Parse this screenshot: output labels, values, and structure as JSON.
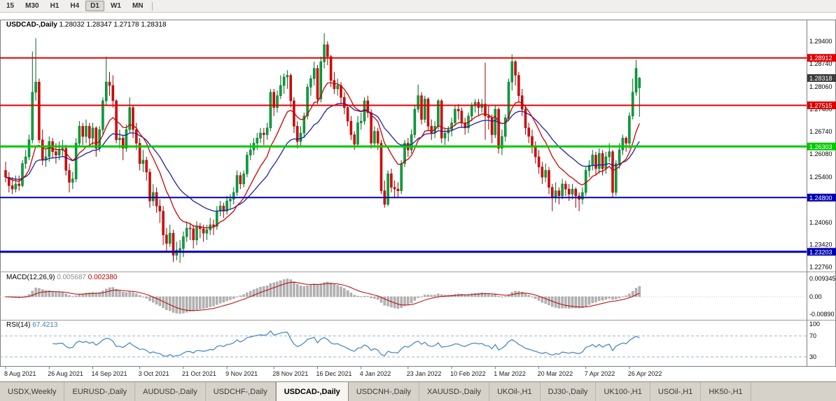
{
  "toolbar": {
    "periods": [
      {
        "label": "15",
        "active": false
      },
      {
        "label": "M30",
        "active": false
      },
      {
        "label": "H1",
        "active": false
      },
      {
        "label": "H4",
        "active": false
      },
      {
        "label": "D1",
        "active": true
      },
      {
        "label": "W1",
        "active": false
      },
      {
        "label": "MN",
        "active": false
      }
    ]
  },
  "chart": {
    "symbol_title": "USDCAD-,Daily",
    "ohlc_text": "1.28032 1.28347 1.27178 1.28318"
  },
  "macd": {
    "label": "MACD(12,26,9)",
    "main_value": "0.005687",
    "signal_value": "0.002380",
    "axis": [
      "0.009345",
      "0.00",
      "-0.00890"
    ]
  },
  "rsi": {
    "label": "RSI(14)",
    "value": "67.4213",
    "axis": [
      "100",
      "70",
      "30"
    ],
    "level_lines": [
      70,
      30
    ]
  },
  "tabs": [
    {
      "label": "USDX,Weekly",
      "active": false
    },
    {
      "label": "EURUSD-,Daily",
      "active": false
    },
    {
      "label": "AUDUSD-,Daily",
      "active": false
    },
    {
      "label": "USDCHF-,Daily",
      "active": false
    },
    {
      "label": "USDCAD-,Daily",
      "active": true
    },
    {
      "label": "USDCNH-,Daily",
      "active": false
    },
    {
      "label": "XAUUSD-,Daily",
      "active": false
    },
    {
      "label": "UKOil-,H1",
      "active": false
    },
    {
      "label": "DJ30-,Daily",
      "active": false
    },
    {
      "label": "UK100-,H1",
      "active": false
    },
    {
      "label": "USOil-,H1",
      "active": false
    },
    {
      "label": "HK50-,H1",
      "active": false
    }
  ],
  "chart_data": {
    "type": "candlestick",
    "symbol": "USDCAD-",
    "timeframe": "Daily",
    "last_bar": {
      "open": 1.28032,
      "high": 1.28347,
      "low": 1.27178,
      "close": 1.28318
    },
    "current_price": {
      "price": 1.28318,
      "label": "1.28318",
      "color": "#3c3c3c"
    },
    "levels": [
      {
        "price": 1.28912,
        "label": "1.28912",
        "color": "#e00000",
        "thickness": 2
      },
      {
        "price": 1.27515,
        "label": "1.27515",
        "color": "#e00000",
        "thickness": 2
      },
      {
        "price": 1.26303,
        "label": "1.26303",
        "color": "#00c800",
        "thickness": 3
      },
      {
        "price": 1.248,
        "label": "1.24800",
        "color": "#0000b0",
        "thickness": 2
      },
      {
        "price": 1.23203,
        "label": "1.23203",
        "color": "#0000b0",
        "thickness": 3
      }
    ],
    "price_axis_labels": [
      "1.29400",
      "1.28740",
      "1.28060",
      "1.27400",
      "1.26740",
      "1.26080",
      "1.25400",
      "1.24740",
      "1.24060",
      "1.23420",
      "1.22760"
    ],
    "date_labels": [
      {
        "text": "8 Aug 2021",
        "i": 0
      },
      {
        "text": "26 Aug 2021",
        "i": 13
      },
      {
        "text": "14 Sep 2021",
        "i": 26
      },
      {
        "text": "3 Oct 2021",
        "i": 40
      },
      {
        "text": "21 Oct 2021",
        "i": 53
      },
      {
        "text": "9 Nov 2021",
        "i": 66
      },
      {
        "text": "28 Nov 2021",
        "i": 80
      },
      {
        "text": "16 Dec 2021",
        "i": 93
      },
      {
        "text": "4 Jan 2022",
        "i": 106
      },
      {
        "text": "23 Jan 2022",
        "i": 120
      },
      {
        "text": "10 Feb 2022",
        "i": 133
      },
      {
        "text": "1 Mar 2022",
        "i": 146
      },
      {
        "text": "20 Mar 2022",
        "i": 159
      },
      {
        "text": "7 Apr 2022",
        "i": 173
      },
      {
        "text": "26 Apr 2022",
        "i": 186
      }
    ],
    "overlays": {
      "ema_fast_period": 12,
      "ema_slow_period": 26,
      "fast_color": "#d00000",
      "slow_color": "#2020a8"
    },
    "indicator_params": {
      "macd": [
        12,
        26,
        9
      ],
      "rsi": 14
    },
    "colors": {
      "bull": "#00a33a",
      "bull_edge": "#006622",
      "bear": "#e00000",
      "bear_edge": "#990000",
      "macd_hist": "#b4b4b4",
      "macd_hist_edge": "#8c8c8c",
      "macd_signal": "#c00000",
      "rsi_line": "#4080c0",
      "rsi_levels": "#8fb4d8"
    },
    "ohlc": [
      [
        1.256,
        1.2585,
        1.2525,
        1.254
      ],
      [
        1.254,
        1.2555,
        1.2495,
        1.2515
      ],
      [
        1.2515,
        1.254,
        1.249,
        1.2505
      ],
      [
        1.2505,
        1.2545,
        1.2495,
        1.252
      ],
      [
        1.252,
        1.2545,
        1.25,
        1.2515
      ],
      [
        1.2515,
        1.259,
        1.251,
        1.258
      ],
      [
        1.258,
        1.262,
        1.2565,
        1.26
      ],
      [
        1.26,
        1.2665,
        1.259,
        1.265
      ],
      [
        1.265,
        1.291,
        1.264,
        1.279
      ],
      [
        1.279,
        1.2949,
        1.2765,
        1.282
      ],
      [
        1.282,
        1.283,
        1.264,
        1.265
      ],
      [
        1.265,
        1.268,
        1.2575,
        1.259
      ],
      [
        1.259,
        1.2625,
        1.257,
        1.26
      ],
      [
        1.26,
        1.266,
        1.2585,
        1.2645
      ],
      [
        1.2645,
        1.2655,
        1.2595,
        1.2615
      ],
      [
        1.2615,
        1.264,
        1.258,
        1.2605
      ],
      [
        1.2605,
        1.2645,
        1.259,
        1.262
      ],
      [
        1.262,
        1.265,
        1.26,
        1.2625
      ],
      [
        1.2625,
        1.2635,
        1.2545,
        1.256
      ],
      [
        1.256,
        1.258,
        1.2495,
        1.2525
      ],
      [
        1.2525,
        1.2555,
        1.2505,
        1.2535
      ],
      [
        1.2535,
        1.2655,
        1.2525,
        1.264
      ],
      [
        1.264,
        1.2705,
        1.263,
        1.269
      ],
      [
        1.269,
        1.27,
        1.2635,
        1.266
      ],
      [
        1.266,
        1.271,
        1.264,
        1.269
      ],
      [
        1.269,
        1.27,
        1.263,
        1.2655
      ],
      [
        1.2655,
        1.27,
        1.2635,
        1.2685
      ],
      [
        1.2685,
        1.269,
        1.26,
        1.2625
      ],
      [
        1.2625,
        1.269,
        1.2615,
        1.268
      ],
      [
        1.268,
        1.2775,
        1.2665,
        1.2765
      ],
      [
        1.2765,
        1.2895,
        1.275,
        1.282
      ],
      [
        1.282,
        1.285,
        1.278,
        1.281
      ],
      [
        1.281,
        1.284,
        1.2745,
        1.2765
      ],
      [
        1.2765,
        1.277,
        1.264,
        1.265
      ],
      [
        1.265,
        1.268,
        1.2625,
        1.2655
      ],
      [
        1.2655,
        1.2665,
        1.259,
        1.2625
      ],
      [
        1.2625,
        1.2695,
        1.2615,
        1.268
      ],
      [
        1.268,
        1.2775,
        1.267,
        1.2745
      ],
      [
        1.2745,
        1.275,
        1.2655,
        1.268
      ],
      [
        1.268,
        1.27,
        1.262,
        1.264
      ],
      [
        1.264,
        1.2655,
        1.256,
        1.258
      ],
      [
        1.258,
        1.262,
        1.2555,
        1.259
      ],
      [
        1.259,
        1.26,
        1.253,
        1.2555
      ],
      [
        1.2555,
        1.2565,
        1.245,
        1.247
      ],
      [
        1.247,
        1.252,
        1.2455,
        1.2495
      ],
      [
        1.2495,
        1.251,
        1.2435,
        1.2455
      ],
      [
        1.2455,
        1.2475,
        1.2405,
        1.244
      ],
      [
        1.244,
        1.2455,
        1.234,
        1.237
      ],
      [
        1.237,
        1.239,
        1.232,
        1.2345
      ],
      [
        1.2345,
        1.24,
        1.2335,
        1.2375
      ],
      [
        1.2375,
        1.2385,
        1.229,
        1.231
      ],
      [
        1.231,
        1.235,
        1.2295,
        1.2325
      ],
      [
        1.2325,
        1.2355,
        1.2288,
        1.233
      ],
      [
        1.233,
        1.238,
        1.2305,
        1.2365
      ],
      [
        1.2365,
        1.241,
        1.235,
        1.239
      ],
      [
        1.239,
        1.2405,
        1.2355,
        1.2388
      ],
      [
        1.2388,
        1.24,
        1.233,
        1.2355
      ],
      [
        1.2355,
        1.241,
        1.234,
        1.2395
      ],
      [
        1.2395,
        1.2405,
        1.236,
        1.2388
      ],
      [
        1.2388,
        1.24,
        1.235,
        1.2375
      ],
      [
        1.2375,
        1.24,
        1.2355,
        1.2385
      ],
      [
        1.2385,
        1.242,
        1.237,
        1.24
      ],
      [
        1.24,
        1.2415,
        1.237,
        1.2395
      ],
      [
        1.2395,
        1.2455,
        1.2385,
        1.244
      ],
      [
        1.244,
        1.247,
        1.2425,
        1.2455
      ],
      [
        1.2455,
        1.2465,
        1.242,
        1.244
      ],
      [
        1.244,
        1.2485,
        1.243,
        1.247
      ],
      [
        1.247,
        1.249,
        1.2445,
        1.2475
      ],
      [
        1.2475,
        1.251,
        1.246,
        1.2495
      ],
      [
        1.2495,
        1.256,
        1.2485,
        1.2545
      ],
      [
        1.2545,
        1.2555,
        1.2505,
        1.252
      ],
      [
        1.252,
        1.256,
        1.251,
        1.255
      ],
      [
        1.255,
        1.2615,
        1.254,
        1.2605
      ],
      [
        1.2605,
        1.264,
        1.259,
        1.262
      ],
      [
        1.262,
        1.2655,
        1.2605,
        1.264
      ],
      [
        1.264,
        1.267,
        1.262,
        1.2655
      ],
      [
        1.2655,
        1.2685,
        1.264,
        1.267
      ],
      [
        1.267,
        1.2685,
        1.2635,
        1.2665
      ],
      [
        1.2665,
        1.27,
        1.265,
        1.2685
      ],
      [
        1.2685,
        1.28,
        1.2675,
        1.279
      ],
      [
        1.279,
        1.28,
        1.272,
        1.2745
      ],
      [
        1.2745,
        1.2795,
        1.273,
        1.278
      ],
      [
        1.278,
        1.284,
        1.277,
        1.281
      ],
      [
        1.281,
        1.2845,
        1.2785,
        1.2835
      ],
      [
        1.2835,
        1.2855,
        1.28,
        1.284
      ],
      [
        1.284,
        1.2845,
        1.2745,
        1.2765
      ],
      [
        1.2765,
        1.2775,
        1.267,
        1.269
      ],
      [
        1.269,
        1.2705,
        1.2625,
        1.2645
      ],
      [
        1.2645,
        1.269,
        1.263,
        1.267
      ],
      [
        1.267,
        1.273,
        1.2655,
        1.272
      ],
      [
        1.272,
        1.2815,
        1.271,
        1.2805
      ],
      [
        1.2805,
        1.284,
        1.278,
        1.283
      ],
      [
        1.283,
        1.288,
        1.281,
        1.286
      ],
      [
        1.286,
        1.287,
        1.2755,
        1.277
      ],
      [
        1.277,
        1.2895,
        1.276,
        1.288
      ],
      [
        1.288,
        1.2964,
        1.286,
        1.293
      ],
      [
        1.293,
        1.294,
        1.287,
        1.2895
      ],
      [
        1.2895,
        1.29,
        1.2805,
        1.2825
      ],
      [
        1.2825,
        1.285,
        1.2785,
        1.28
      ],
      [
        1.28,
        1.283,
        1.278,
        1.281
      ],
      [
        1.281,
        1.282,
        1.2755,
        1.2775
      ],
      [
        1.2775,
        1.279,
        1.2725,
        1.2745
      ],
      [
        1.2745,
        1.2755,
        1.269,
        1.2705
      ],
      [
        1.2705,
        1.272,
        1.265,
        1.2665
      ],
      [
        1.2665,
        1.2675,
        1.262,
        1.2637
      ],
      [
        1.2637,
        1.272,
        1.263,
        1.27
      ],
      [
        1.27,
        1.273,
        1.268,
        1.2705
      ],
      [
        1.2705,
        1.2775,
        1.2695,
        1.2765
      ],
      [
        1.2765,
        1.278,
        1.2715,
        1.273
      ],
      [
        1.273,
        1.274,
        1.2625,
        1.264
      ],
      [
        1.264,
        1.269,
        1.263,
        1.2675
      ],
      [
        1.2675,
        1.2685,
        1.262,
        1.264
      ],
      [
        1.264,
        1.265,
        1.249,
        1.25
      ],
      [
        1.25,
        1.253,
        1.245,
        1.246
      ],
      [
        1.246,
        1.256,
        1.2455,
        1.255
      ],
      [
        1.255,
        1.2565,
        1.2495,
        1.251
      ],
      [
        1.251,
        1.253,
        1.248,
        1.2505
      ],
      [
        1.2505,
        1.2525,
        1.248,
        1.25
      ],
      [
        1.25,
        1.259,
        1.249,
        1.258
      ],
      [
        1.258,
        1.265,
        1.257,
        1.264
      ],
      [
        1.264,
        1.2655,
        1.26,
        1.262
      ],
      [
        1.262,
        1.268,
        1.261,
        1.2665
      ],
      [
        1.2665,
        1.275,
        1.2655,
        1.274
      ],
      [
        1.274,
        1.2813,
        1.273,
        1.278
      ],
      [
        1.278,
        1.279,
        1.2695,
        1.271
      ],
      [
        1.271,
        1.278,
        1.27,
        1.277
      ],
      [
        1.277,
        1.2775,
        1.2675,
        1.269
      ],
      [
        1.269,
        1.271,
        1.265,
        1.267
      ],
      [
        1.267,
        1.2705,
        1.2655,
        1.269
      ],
      [
        1.269,
        1.277,
        1.268,
        1.2765
      ],
      [
        1.2765,
        1.277,
        1.264,
        1.2655
      ],
      [
        1.2655,
        1.2685,
        1.2635,
        1.267
      ],
      [
        1.267,
        1.269,
        1.2645,
        1.268
      ],
      [
        1.268,
        1.2715,
        1.266,
        1.27
      ],
      [
        1.27,
        1.275,
        1.269,
        1.274
      ],
      [
        1.274,
        1.2755,
        1.271,
        1.2735
      ],
      [
        1.2735,
        1.2745,
        1.2685,
        1.27
      ],
      [
        1.27,
        1.2715,
        1.2665,
        1.2685
      ],
      [
        1.2685,
        1.273,
        1.267,
        1.272
      ],
      [
        1.272,
        1.276,
        1.2705,
        1.275
      ],
      [
        1.275,
        1.277,
        1.273,
        1.276
      ],
      [
        1.276,
        1.277,
        1.272,
        1.2745
      ],
      [
        1.2745,
        1.277,
        1.273,
        1.2755
      ],
      [
        1.2755,
        1.2877,
        1.265,
        1.272
      ],
      [
        1.272,
        1.275,
        1.268,
        1.2715
      ],
      [
        1.2715,
        1.2725,
        1.264,
        1.2665
      ],
      [
        1.2665,
        1.275,
        1.2655,
        1.274
      ],
      [
        1.274,
        1.2745,
        1.261,
        1.2625
      ],
      [
        1.2625,
        1.268,
        1.2605,
        1.266
      ],
      [
        1.266,
        1.2725,
        1.2645,
        1.2715
      ],
      [
        1.2715,
        1.283,
        1.2705,
        1.282
      ],
      [
        1.282,
        1.2901,
        1.2795,
        1.288
      ],
      [
        1.288,
        1.2885,
        1.281,
        1.284
      ],
      [
        1.284,
        1.285,
        1.276,
        1.278
      ],
      [
        1.278,
        1.28,
        1.272,
        1.274
      ],
      [
        1.274,
        1.275,
        1.2665,
        1.2685
      ],
      [
        1.2685,
        1.27,
        1.264,
        1.266
      ],
      [
        1.266,
        1.268,
        1.261,
        1.263
      ],
      [
        1.263,
        1.2645,
        1.258,
        1.26
      ],
      [
        1.26,
        1.262,
        1.255,
        1.257
      ],
      [
        1.257,
        1.2585,
        1.252,
        1.254
      ],
      [
        1.254,
        1.258,
        1.2525,
        1.256
      ],
      [
        1.256,
        1.257,
        1.249,
        1.251
      ],
      [
        1.251,
        1.252,
        1.244,
        1.248
      ],
      [
        1.248,
        1.2525,
        1.2465,
        1.25
      ],
      [
        1.25,
        1.251,
        1.246,
        1.2485
      ],
      [
        1.2485,
        1.2535,
        1.2475,
        1.252
      ],
      [
        1.252,
        1.253,
        1.2485,
        1.2505
      ],
      [
        1.2505,
        1.252,
        1.247,
        1.249
      ],
      [
        1.249,
        1.252,
        1.2475,
        1.2505
      ],
      [
        1.2505,
        1.251,
        1.245,
        1.2485
      ],
      [
        1.2485,
        1.2495,
        1.244,
        1.2475
      ],
      [
        1.2475,
        1.251,
        1.246,
        1.2495
      ],
      [
        1.2495,
        1.257,
        1.2485,
        1.256
      ],
      [
        1.256,
        1.259,
        1.254,
        1.2575
      ],
      [
        1.2575,
        1.262,
        1.256,
        1.2605
      ],
      [
        1.2605,
        1.2615,
        1.2545,
        1.2565
      ],
      [
        1.2565,
        1.2625,
        1.255,
        1.261
      ],
      [
        1.261,
        1.262,
        1.2545,
        1.2565
      ],
      [
        1.2565,
        1.2615,
        1.255,
        1.26
      ],
      [
        1.26,
        1.264,
        1.2585,
        1.2615
      ],
      [
        1.2615,
        1.262,
        1.248,
        1.2495
      ],
      [
        1.2495,
        1.259,
        1.2485,
        1.258
      ],
      [
        1.258,
        1.264,
        1.2565,
        1.262
      ],
      [
        1.262,
        1.2665,
        1.2605,
        1.2655
      ],
      [
        1.2655,
        1.266,
        1.2615,
        1.264
      ],
      [
        1.264,
        1.273,
        1.2625,
        1.272
      ],
      [
        1.272,
        1.283,
        1.271,
        1.279
      ],
      [
        1.279,
        1.2885,
        1.278,
        1.286
      ],
      [
        1.28032,
        1.28347,
        1.27178,
        1.28318
      ]
    ]
  }
}
